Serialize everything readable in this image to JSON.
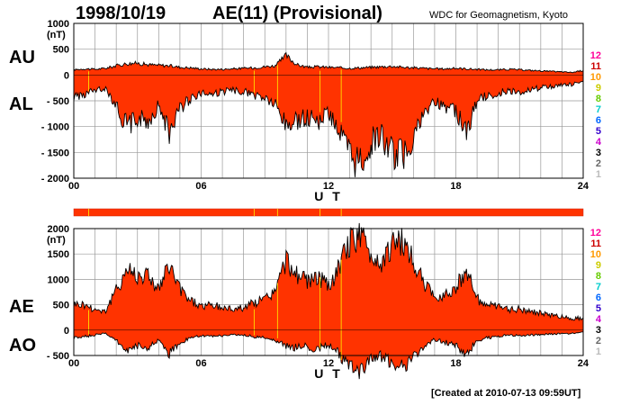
{
  "header": {
    "date": "1998/10/19",
    "index": "AE(11) (Provisional)",
    "organization": "WDC for Geomagnetism, Kyoto"
  },
  "footer": {
    "created": "[Created at 2010-07-13 09:59UT]"
  },
  "colors": {
    "fill": "#ff3300",
    "outline": "#000000",
    "grid": "#999999",
    "marker": "#ffcc00"
  },
  "station_legend": {
    "labels": [
      "12",
      "11",
      "10",
      "9",
      "8",
      "7",
      "6",
      "5",
      "4",
      "3",
      "2",
      "1"
    ],
    "colors": [
      "#ff0099",
      "#cc0000",
      "#ff9900",
      "#cccc00",
      "#66cc00",
      "#00cccc",
      "#0066ff",
      "#3300cc",
      "#cc00cc",
      "#000000",
      "#666666",
      "#bbbbbb"
    ]
  },
  "chart_data": [
    {
      "type": "area",
      "panel": "upper",
      "series": [
        {
          "name": "AU",
          "x": [
            0,
            0.5,
            1,
            1.5,
            2,
            2.5,
            3,
            3.5,
            4,
            4.5,
            5,
            5.5,
            6,
            6.5,
            7,
            7.5,
            8,
            8.5,
            9,
            9.5,
            10,
            10.5,
            11,
            11.5,
            12,
            12.5,
            13,
            13.5,
            14,
            14.5,
            15,
            15.5,
            16,
            16.5,
            17,
            17.5,
            18,
            18.5,
            19,
            19.5,
            20,
            20.5,
            21,
            21.5,
            22,
            22.5,
            23,
            23.5,
            24
          ],
          "values": [
            100,
            120,
            110,
            130,
            180,
            220,
            230,
            200,
            190,
            180,
            150,
            140,
            120,
            110,
            110,
            120,
            130,
            140,
            160,
            180,
            380,
            200,
            150,
            160,
            150,
            140,
            130,
            140,
            150,
            160,
            170,
            150,
            140,
            130,
            120,
            120,
            130,
            120,
            110,
            100,
            100,
            110,
            100,
            90,
            80,
            70,
            60,
            50,
            90
          ]
        },
        {
          "name": "AL",
          "x": [
            0,
            0.5,
            1,
            1.5,
            2,
            2.5,
            3,
            3.5,
            4,
            4.5,
            5,
            5.5,
            6,
            6.5,
            7,
            7.5,
            8,
            8.5,
            9,
            9.5,
            10,
            10.5,
            11,
            11.5,
            12,
            12.5,
            13,
            13.5,
            14,
            14.5,
            15,
            15.5,
            16,
            16.5,
            17,
            17.5,
            18,
            18.5,
            19,
            19.5,
            20,
            20.5,
            21,
            21.5,
            22,
            22.5,
            23,
            23.5,
            24
          ],
          "values": [
            -420,
            -380,
            -300,
            -250,
            -600,
            -1000,
            -850,
            -900,
            -600,
            -1100,
            -650,
            -450,
            -350,
            -380,
            -330,
            -300,
            -320,
            -400,
            -450,
            -600,
            -1000,
            -900,
            -800,
            -900,
            -700,
            -1100,
            -1600,
            -1750,
            -1300,
            -1200,
            -1500,
            -1600,
            -1200,
            -800,
            -500,
            -600,
            -700,
            -1100,
            -500,
            -400,
            -350,
            -300,
            -320,
            -280,
            -250,
            -230,
            -200,
            -180,
            -150
          ]
        }
      ],
      "ylim": [
        -2000,
        1000
      ],
      "yticks": [
        "1000",
        "500",
        "0",
        "- 500",
        "- 1000",
        "- 1500",
        "- 2000"
      ],
      "xticks": [
        "00",
        "06",
        "12",
        "18",
        "24"
      ],
      "xlim": [
        0,
        24
      ],
      "ylabel_unit": "(nT)",
      "xlabel": "U T",
      "left_labels": [
        "AU",
        "AL"
      ]
    },
    {
      "type": "area",
      "panel": "lower",
      "series": [
        {
          "name": "AE",
          "x": [
            0,
            0.5,
            1,
            1.5,
            2,
            2.5,
            3,
            3.5,
            4,
            4.5,
            5,
            5.5,
            6,
            6.5,
            7,
            7.5,
            8,
            8.5,
            9,
            9.5,
            10,
            10.5,
            11,
            11.5,
            12,
            12.5,
            13,
            13.5,
            14,
            14.5,
            15,
            15.5,
            16,
            16.5,
            17,
            17.5,
            18,
            18.5,
            19,
            19.5,
            20,
            20.5,
            21,
            21.5,
            22,
            22.5,
            23,
            23.5,
            24
          ],
          "values": [
            520,
            500,
            410,
            380,
            780,
            1220,
            1080,
            1100,
            790,
            1280,
            800,
            590,
            470,
            490,
            440,
            420,
            450,
            540,
            610,
            780,
            1380,
            1100,
            950,
            1060,
            850,
            1240,
            1730,
            1890,
            1450,
            1360,
            1670,
            1750,
            1340,
            930,
            620,
            720,
            830,
            1220,
            610,
            500,
            450,
            410,
            420,
            370,
            330,
            300,
            260,
            230,
            240
          ]
        },
        {
          "name": "AO",
          "x": [
            0,
            0.5,
            1,
            1.5,
            2,
            2.5,
            3,
            3.5,
            4,
            4.5,
            5,
            5.5,
            6,
            6.5,
            7,
            7.5,
            8,
            8.5,
            9,
            9.5,
            10,
            10.5,
            11,
            11.5,
            12,
            12.5,
            13,
            13.5,
            14,
            14.5,
            15,
            15.5,
            16,
            16.5,
            17,
            17.5,
            18,
            18.5,
            19,
            19.5,
            20,
            20.5,
            21,
            21.5,
            22,
            22.5,
            23,
            23.5,
            24
          ],
          "values": [
            -160,
            -130,
            -95,
            -60,
            -210,
            -390,
            -310,
            -350,
            -205,
            -460,
            -250,
            -155,
            -115,
            -135,
            -110,
            -90,
            -95,
            -130,
            -145,
            -210,
            -310,
            -350,
            -325,
            -370,
            -275,
            -480,
            -735,
            -805,
            -575,
            -520,
            -665,
            -725,
            -530,
            -335,
            -190,
            -240,
            -285,
            -490,
            -195,
            -150,
            -125,
            -95,
            -110,
            -95,
            -85,
            -80,
            -70,
            -65,
            -30
          ]
        }
      ],
      "ylim": [
        -500,
        2000
      ],
      "yticks": [
        "2000",
        "1500",
        "1000",
        "500",
        "0",
        "- 500"
      ],
      "xticks": [
        "00",
        "06",
        "12",
        "18",
        "24"
      ],
      "xlim": [
        0,
        24
      ],
      "ylabel_unit": "(nT)",
      "xlabel": "U T",
      "left_labels": [
        "AE",
        "AO"
      ]
    }
  ],
  "yellow_markers_ut": [
    0.7,
    8.5,
    9.6,
    11.6,
    12.6
  ]
}
